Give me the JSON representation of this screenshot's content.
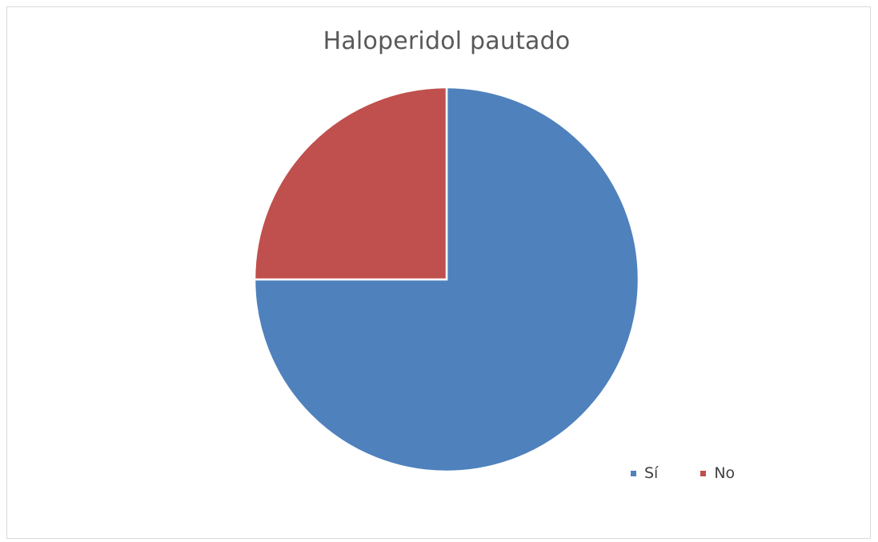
{
  "chart_data": {
    "type": "pie",
    "title": "Haloperidol pautado",
    "legend_position": "bottom-right",
    "slices": [
      {
        "label": "Sí",
        "value": 75,
        "color": "#4f81bd"
      },
      {
        "label": "No",
        "value": 25,
        "color": "#c0504d"
      }
    ]
  }
}
